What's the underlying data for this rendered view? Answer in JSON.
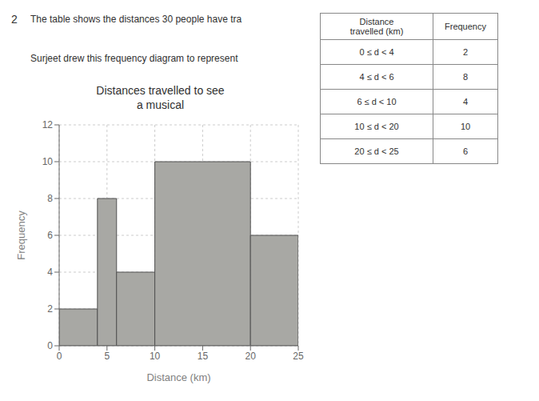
{
  "chart_data": {
    "type": "histogram",
    "title": "Distances travelled to see\na musical",
    "xlabel": "Distance (km)",
    "ylabel": "Frequency",
    "bins": [
      0,
      4,
      6,
      10,
      20,
      25
    ],
    "values": [
      2,
      8,
      4,
      10,
      6
    ],
    "color": "#a8a8a4",
    "xlim": [
      0,
      25
    ],
    "ylim": [
      0,
      12
    ],
    "xticks": [
      0,
      5,
      10,
      15,
      20,
      25
    ],
    "yticks": [
      0,
      2,
      4,
      6,
      8,
      10,
      12
    ],
    "grid": true,
    "annotations": [
      "2",
      "The table shows the distances 30 people have tra",
      "Surjeet drew this frequency diagram to represent"
    ],
    "table": [
      [
        "Distance\ntravelled (km)",
        "Frequency"
      ],
      [
        "0 ≤ d < 4",
        "2"
      ],
      [
        "4 ≤ d < 6",
        "8"
      ],
      [
        "6 ≤ d < 10",
        "4"
      ],
      [
        "10 ≤ d < 20",
        "10"
      ],
      [
        "20 ≤ d < 25",
        "6"
      ]
    ]
  }
}
